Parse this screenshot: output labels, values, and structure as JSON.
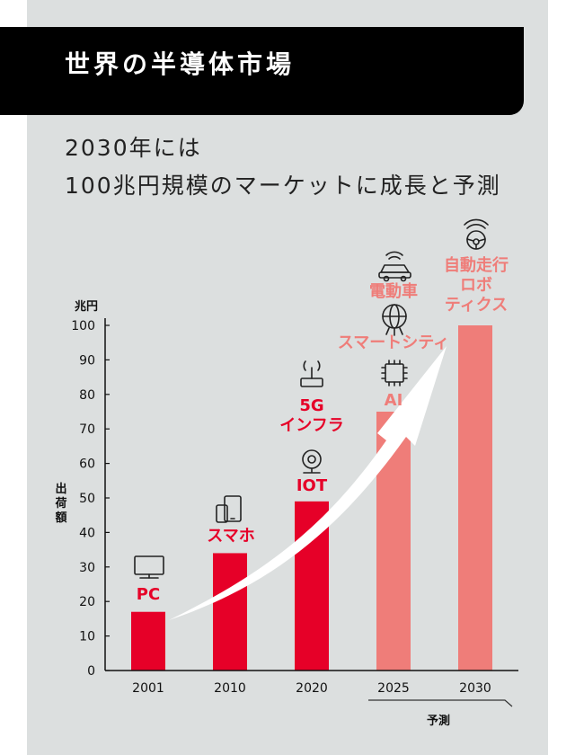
{
  "banner": {
    "title": "世界の半導体市場"
  },
  "headline": {
    "line1": "2030年には",
    "line2": "100兆円規模のマーケットに成長と予測"
  },
  "colors": {
    "actual": "#e60028",
    "forecast": "#ef7d79",
    "arrow": "#ffffff",
    "panel": "#dcdfdf",
    "banner": "#000000"
  },
  "chart_data": {
    "type": "bar",
    "categories": [
      "2001",
      "2010",
      "2020",
      "2025",
      "2030"
    ],
    "values": [
      17,
      34,
      49,
      75,
      100
    ],
    "forecast": [
      false,
      false,
      false,
      true,
      true
    ],
    "ylim": [
      0,
      100
    ],
    "yticks": [
      0,
      10,
      20,
      30,
      40,
      50,
      60,
      70,
      80,
      90,
      100
    ],
    "yunit": "兆円",
    "ylabel": "出荷額",
    "forecast_label": "予測",
    "grid": false,
    "annotations": [
      {
        "category": "2001",
        "lines": [
          "PC"
        ],
        "icon": "monitor-icon"
      },
      {
        "category": "2010",
        "lines": [
          "スマホ"
        ],
        "icon": "smartphone-tablet-icon"
      },
      {
        "category": "2020",
        "lines": [
          "IOT"
        ],
        "icon": "webcam-icon"
      },
      {
        "category": "2020",
        "lines": [
          "5G",
          "インフラ"
        ],
        "icon": "router-icon"
      },
      {
        "category": "2025",
        "lines": [
          "AI"
        ],
        "icon": "ai-chip-icon"
      },
      {
        "category": "2025",
        "lines": [
          "スマートシティ"
        ],
        "icon": "globe-network-icon"
      },
      {
        "category": "2025",
        "lines": [
          "電動車"
        ],
        "icon": "connected-car-icon"
      },
      {
        "category": "2030",
        "lines": [
          "自動走行",
          "ロボ",
          "ティクス"
        ],
        "icon": "steering-wheel-icon"
      }
    ]
  }
}
